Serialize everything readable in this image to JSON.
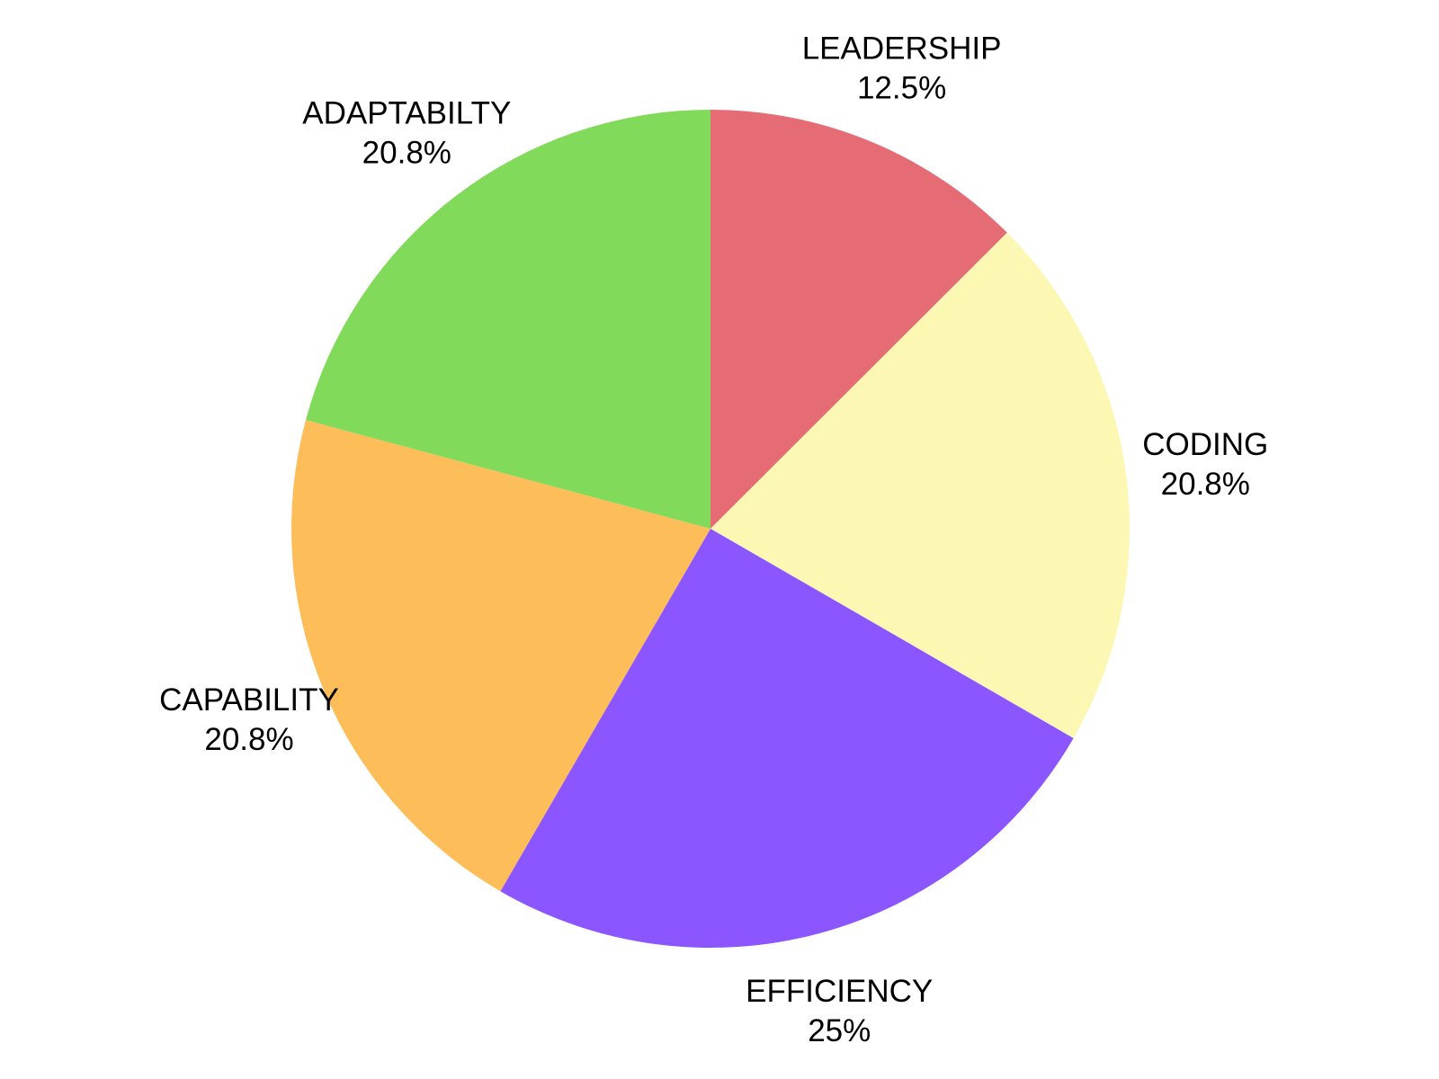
{
  "chart_data": {
    "type": "pie",
    "slices": [
      {
        "name": "LEADERSHIP",
        "value": 12.5,
        "label": "12.5%",
        "color": "#e56b74"
      },
      {
        "name": "CODING",
        "value": 20.8,
        "label": "20.8%",
        "color": "#fcf8b3"
      },
      {
        "name": "EFFICIENCY",
        "value": 25,
        "label": "25%",
        "color": "#8b55ff"
      },
      {
        "name": "CAPABILITY",
        "value": 20.8,
        "label": "20.8%",
        "color": "#fdbd59"
      },
      {
        "name": "ADAPTABILTY",
        "value": 20.8,
        "label": "20.8%",
        "color": "#81da5a"
      }
    ],
    "start_angle": "12 o'clock",
    "direction": "clockwise",
    "legend": "none"
  }
}
